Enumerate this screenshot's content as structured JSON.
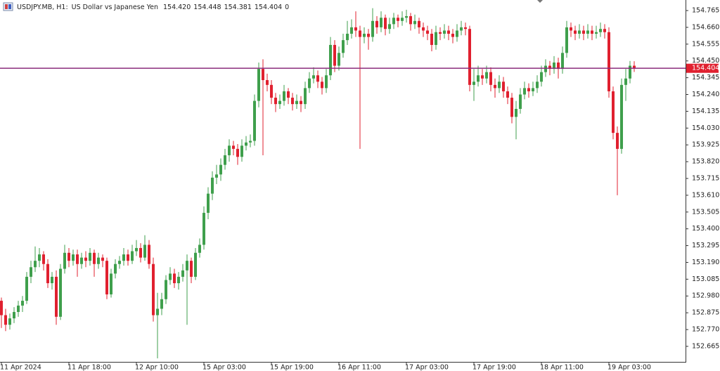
{
  "chart_data": {
    "type": "candlestick",
    "symbol": "USDJPY.MB, H1:",
    "description": "US Dollar vs Japanese Yen",
    "last_labels": [
      "154.420",
      "154.448",
      "154.381",
      "154.404"
    ],
    "spread": 0,
    "up_color": "#3f9f4c",
    "down_color": "#e0202f",
    "price_line_color": "#8a2c7c",
    "ylim": [
      152.568,
      154.831
    ],
    "yticks": [
      152.665,
      {
        "value": 152.77,
        "label": "152.770"
      },
      152.875,
      {
        "value": 152.98,
        "label": "152.980"
      },
      153.085,
      {
        "value": 153.19,
        "label": "153.190"
      },
      153.295,
      {
        "value": 153.4,
        "label": "153.400"
      },
      153.505,
      {
        "value": 153.61,
        "label": "153.610"
      },
      153.715,
      {
        "value": 153.82,
        "label": "153.820"
      },
      153.925,
      {
        "value": 154.03,
        "label": "154.030"
      },
      154.135,
      {
        "value": 154.24,
        "label": "154.240"
      },
      154.345,
      {
        "value": 154.45,
        "label": "154.450"
      },
      154.555,
      {
        "value": 154.66,
        "label": "154.660"
      },
      154.765
    ],
    "categories": [
      "11 Apr 2024",
      null,
      null,
      null,
      null,
      null,
      null,
      null,
      null,
      null,
      null,
      null,
      null,
      null,
      null,
      null,
      "11 Apr 18:00",
      null,
      null,
      null,
      null,
      null,
      null,
      null,
      null,
      null,
      null,
      null,
      null,
      null,
      null,
      null,
      "12 Apr 10:00",
      null,
      null,
      null,
      null,
      null,
      null,
      null,
      null,
      null,
      null,
      null,
      null,
      null,
      null,
      null,
      "15 Apr 03:00",
      null,
      null,
      null,
      null,
      null,
      null,
      null,
      null,
      null,
      null,
      null,
      null,
      null,
      null,
      null,
      "15 Apr 19:00",
      null,
      null,
      null,
      null,
      null,
      null,
      null,
      null,
      null,
      null,
      null,
      null,
      null,
      null,
      null,
      "16 Apr 11:00",
      null,
      null,
      null,
      null,
      null,
      null,
      null,
      null,
      null,
      null,
      null,
      null,
      null,
      null,
      null,
      "17 Apr 03:00",
      null,
      null,
      null,
      null,
      null,
      null,
      null,
      null,
      null,
      null,
      null,
      null,
      null,
      null,
      null,
      "17 Apr 19:00",
      null,
      null,
      null,
      null,
      null,
      null,
      null,
      null,
      null,
      null,
      null,
      null,
      null,
      null,
      null,
      "18 Apr 11:00",
      null,
      null,
      null,
      null,
      null,
      null,
      null,
      null,
      null,
      null,
      null,
      null,
      null,
      null,
      null,
      "19 Apr 03:00",
      null,
      null,
      null,
      null,
      null,
      null
    ],
    "ohlc": [
      [
        152.95,
        152.97,
        152.78,
        152.86
      ],
      [
        152.86,
        152.9,
        152.76,
        152.8
      ],
      [
        152.8,
        152.87,
        152.77,
        152.84
      ],
      [
        152.84,
        152.91,
        152.81,
        152.88
      ],
      [
        152.88,
        152.95,
        152.85,
        152.92
      ],
      [
        152.92,
        152.98,
        152.88,
        152.95
      ],
      [
        152.95,
        153.13,
        152.93,
        153.1
      ],
      [
        153.1,
        153.2,
        153.06,
        153.16
      ],
      [
        153.16,
        153.29,
        153.13,
        153.2
      ],
      [
        153.2,
        153.28,
        153.16,
        153.24
      ],
      [
        153.24,
        153.26,
        153.14,
        153.18
      ],
      [
        153.18,
        153.21,
        153.03,
        153.06
      ],
      [
        153.06,
        153.13,
        153.02,
        153.1
      ],
      [
        153.1,
        153.14,
        152.8,
        152.85
      ],
      [
        152.85,
        153.18,
        152.83,
        153.15
      ],
      [
        153.15,
        153.3,
        153.12,
        153.25
      ],
      [
        153.25,
        153.28,
        153.16,
        153.2
      ],
      [
        153.2,
        153.27,
        153.17,
        153.24
      ],
      [
        153.24,
        153.27,
        153.1,
        153.18
      ],
      [
        153.18,
        153.25,
        153.15,
        153.22
      ],
      [
        153.22,
        153.26,
        153.16,
        153.2
      ],
      [
        153.2,
        153.28,
        153.17,
        153.25
      ],
      [
        153.25,
        153.27,
        153.1,
        153.18
      ],
      [
        153.18,
        153.25,
        153.15,
        153.22
      ],
      [
        153.22,
        153.24,
        153.16,
        153.2
      ],
      [
        153.2,
        153.22,
        152.96,
        152.99
      ],
      [
        152.99,
        153.15,
        152.97,
        153.12
      ],
      [
        153.12,
        153.21,
        153.09,
        153.18
      ],
      [
        153.18,
        153.23,
        153.15,
        153.2
      ],
      [
        153.2,
        153.28,
        153.17,
        153.24
      ],
      [
        153.24,
        153.27,
        153.17,
        153.2
      ],
      [
        153.2,
        153.3,
        153.18,
        153.26
      ],
      [
        153.26,
        153.33,
        153.23,
        153.28
      ],
      [
        153.28,
        153.31,
        153.19,
        153.22
      ],
      [
        153.22,
        153.36,
        153.2,
        153.3
      ],
      [
        153.3,
        153.33,
        153.15,
        153.18
      ],
      [
        153.18,
        153.22,
        152.82,
        152.86
      ],
      [
        152.86,
        153.0,
        152.59,
        152.9
      ],
      [
        152.9,
        153.0,
        152.86,
        152.96
      ],
      [
        152.96,
        153.11,
        152.93,
        153.08
      ],
      [
        153.08,
        153.16,
        153.05,
        153.12
      ],
      [
        153.12,
        153.15,
        153.03,
        153.06
      ],
      [
        153.06,
        153.13,
        153.02,
        153.1
      ],
      [
        153.1,
        153.18,
        153.07,
        153.14
      ],
      [
        153.14,
        153.24,
        152.8,
        153.2
      ],
      [
        153.2,
        153.22,
        153.06,
        153.1
      ],
      [
        153.1,
        153.28,
        153.08,
        153.25
      ],
      [
        153.25,
        153.34,
        153.22,
        153.3
      ],
      [
        153.3,
        153.54,
        153.27,
        153.5
      ],
      [
        153.5,
        153.66,
        153.46,
        153.62
      ],
      [
        153.62,
        153.76,
        153.58,
        153.72
      ],
      [
        153.72,
        153.8,
        153.68,
        153.74
      ],
      [
        153.74,
        153.84,
        153.7,
        153.8
      ],
      [
        153.8,
        153.9,
        153.77,
        153.86
      ],
      [
        153.86,
        153.96,
        153.82,
        153.92
      ],
      [
        153.92,
        153.95,
        153.86,
        153.9
      ],
      [
        153.9,
        153.93,
        153.8,
        153.85
      ],
      [
        153.85,
        153.96,
        153.82,
        153.92
      ],
      [
        153.92,
        153.98,
        153.89,
        153.94
      ],
      [
        153.94,
        153.99,
        153.91,
        153.95
      ],
      [
        153.95,
        154.24,
        153.92,
        154.2
      ],
      [
        154.2,
        154.44,
        154.16,
        154.4
      ],
      [
        154.4,
        154.46,
        153.86,
        154.33
      ],
      [
        154.33,
        154.37,
        154.26,
        154.3
      ],
      [
        154.3,
        154.33,
        154.18,
        154.22
      ],
      [
        154.22,
        154.25,
        154.13,
        154.18
      ],
      [
        154.18,
        154.24,
        154.15,
        154.2
      ],
      [
        154.2,
        154.3,
        154.17,
        154.26
      ],
      [
        154.26,
        154.28,
        154.18,
        154.22
      ],
      [
        154.22,
        154.25,
        154.14,
        154.18
      ],
      [
        154.18,
        154.24,
        154.15,
        154.2
      ],
      [
        154.2,
        154.23,
        154.13,
        154.18
      ],
      [
        154.18,
        154.32,
        154.15,
        154.28
      ],
      [
        154.28,
        154.38,
        154.25,
        154.34
      ],
      [
        154.34,
        154.41,
        154.31,
        154.36
      ],
      [
        154.36,
        154.39,
        154.28,
        154.32
      ],
      [
        154.32,
        154.35,
        154.24,
        154.28
      ],
      [
        154.28,
        154.4,
        154.25,
        154.36
      ],
      [
        154.36,
        154.6,
        154.33,
        154.55
      ],
      [
        154.55,
        154.58,
        154.38,
        154.42
      ],
      [
        154.42,
        154.54,
        154.39,
        154.5
      ],
      [
        154.5,
        154.62,
        154.47,
        154.58
      ],
      [
        154.58,
        154.7,
        154.55,
        154.62
      ],
      [
        154.62,
        154.71,
        154.59,
        154.66
      ],
      [
        154.66,
        154.76,
        154.6,
        154.64
      ],
      [
        154.64,
        154.67,
        153.9,
        154.6
      ],
      [
        154.6,
        154.66,
        154.56,
        154.62
      ],
      [
        154.62,
        154.65,
        154.52,
        154.6
      ],
      [
        154.6,
        154.78,
        154.57,
        154.7
      ],
      [
        154.7,
        154.73,
        154.62,
        154.66
      ],
      [
        154.66,
        154.76,
        154.63,
        154.72
      ],
      [
        154.72,
        154.74,
        154.61,
        154.65
      ],
      [
        154.65,
        154.72,
        154.62,
        154.68
      ],
      [
        154.68,
        154.75,
        154.65,
        154.72
      ],
      [
        154.72,
        154.74,
        154.66,
        154.7
      ],
      [
        154.7,
        154.76,
        154.67,
        154.72
      ],
      [
        154.72,
        154.77,
        154.69,
        154.73
      ],
      [
        154.73,
        154.75,
        154.64,
        154.68
      ],
      [
        154.68,
        154.74,
        154.65,
        154.7
      ],
      [
        154.7,
        154.72,
        154.62,
        154.66
      ],
      [
        154.66,
        154.69,
        154.6,
        154.64
      ],
      [
        154.64,
        154.67,
        154.58,
        154.62
      ],
      [
        154.62,
        154.65,
        154.51,
        154.55
      ],
      [
        154.55,
        154.67,
        154.52,
        154.63
      ],
      [
        154.63,
        154.66,
        154.58,
        154.62
      ],
      [
        154.62,
        154.68,
        154.59,
        154.64
      ],
      [
        154.64,
        154.67,
        154.58,
        154.62
      ],
      [
        154.62,
        154.65,
        154.56,
        154.6
      ],
      [
        154.6,
        154.68,
        154.57,
        154.64
      ],
      [
        154.64,
        154.7,
        154.61,
        154.66
      ],
      [
        154.66,
        154.69,
        154.61,
        154.65
      ],
      [
        154.65,
        154.67,
        154.26,
        154.3
      ],
      [
        154.3,
        154.4,
        154.2,
        154.32
      ],
      [
        154.32,
        154.42,
        154.29,
        154.36
      ],
      [
        154.36,
        154.4,
        154.3,
        154.34
      ],
      [
        154.34,
        154.42,
        154.31,
        154.38
      ],
      [
        154.38,
        154.41,
        154.26,
        154.3
      ],
      [
        154.3,
        154.34,
        154.22,
        154.28
      ],
      [
        154.28,
        154.36,
        154.25,
        154.32
      ],
      [
        154.32,
        154.35,
        154.22,
        154.26
      ],
      [
        154.26,
        154.29,
        154.18,
        154.22
      ],
      [
        154.22,
        154.25,
        154.06,
        154.1
      ],
      [
        154.1,
        154.2,
        153.96,
        154.15
      ],
      [
        154.15,
        154.28,
        154.12,
        154.24
      ],
      [
        154.24,
        154.32,
        154.21,
        154.28
      ],
      [
        154.28,
        154.31,
        154.22,
        154.26
      ],
      [
        154.26,
        154.32,
        154.23,
        154.28
      ],
      [
        154.28,
        154.36,
        154.25,
        154.32
      ],
      [
        154.32,
        154.42,
        154.29,
        154.38
      ],
      [
        154.38,
        154.46,
        154.35,
        154.42
      ],
      [
        154.42,
        154.45,
        154.36,
        154.4
      ],
      [
        154.4,
        154.48,
        154.37,
        154.44
      ],
      [
        154.44,
        154.47,
        154.34,
        154.4
      ],
      [
        154.4,
        154.54,
        154.37,
        154.5
      ],
      [
        154.5,
        154.7,
        154.47,
        154.66
      ],
      [
        154.66,
        154.69,
        154.6,
        154.64
      ],
      [
        154.64,
        154.67,
        154.58,
        154.62
      ],
      [
        154.62,
        154.68,
        154.59,
        154.64
      ],
      [
        154.64,
        154.67,
        154.58,
        154.62
      ],
      [
        154.62,
        154.68,
        154.59,
        154.64
      ],
      [
        154.64,
        154.67,
        154.58,
        154.62
      ],
      [
        154.62,
        154.67,
        154.59,
        154.63
      ],
      [
        154.63,
        154.69,
        154.6,
        154.65
      ],
      [
        154.65,
        154.68,
        154.59,
        154.63
      ],
      [
        154.63,
        154.66,
        154.22,
        154.26
      ],
      [
        154.26,
        154.29,
        153.96,
        154.0
      ],
      [
        154.0,
        154.04,
        153.61,
        153.9
      ],
      [
        153.9,
        154.34,
        153.87,
        154.3
      ],
      [
        154.3,
        154.4,
        154.2,
        154.34
      ],
      [
        154.34,
        154.45,
        154.31,
        154.42
      ],
      [
        154.42,
        154.448,
        154.381,
        154.404
      ]
    ]
  }
}
